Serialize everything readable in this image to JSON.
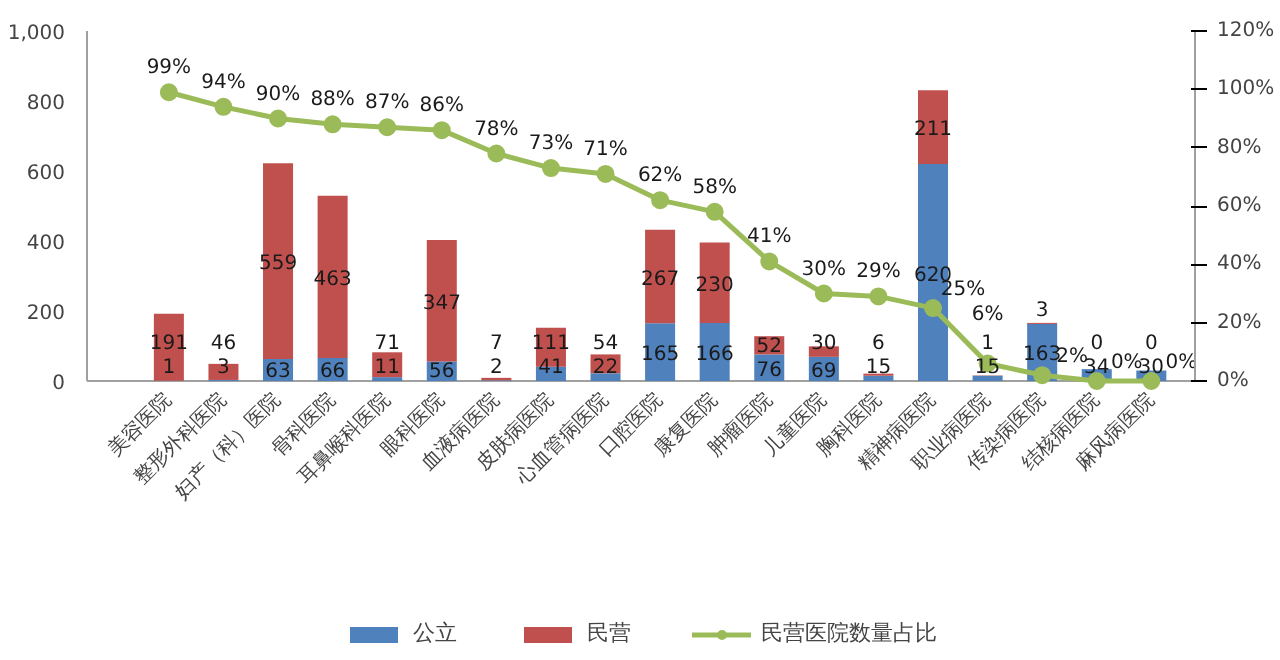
{
  "chart_data": {
    "type": "bar",
    "stacked": true,
    "data_labels": true,
    "legend": "bottom",
    "grid": false,
    "categories": [
      "美容医院",
      "整形外科医院",
      "妇产（科）医院",
      "骨科医院",
      "耳鼻喉科医院",
      "眼科医院",
      "血液病医院",
      "皮肤病医院",
      "心血管病医院",
      "口腔医院",
      "康复医院",
      "肿瘤医院",
      "儿童医院",
      "胸科医院",
      "精神病医院",
      "职业病医院",
      "传染病医院",
      "结核病医院",
      "麻风病医院"
    ],
    "series": [
      {
        "name": "公立",
        "color": "#4f81bd",
        "values": [
          1,
          3,
          63,
          66,
          11,
          56,
          2,
          41,
          22,
          165,
          166,
          76,
          69,
          15,
          620,
          15,
          163,
          34,
          30
        ]
      },
      {
        "name": "民营",
        "color": "#c0504d",
        "values": [
          191,
          46,
          559,
          463,
          71,
          347,
          7,
          111,
          54,
          267,
          230,
          52,
          30,
          6,
          211,
          1,
          3,
          0,
          0
        ]
      },
      {
        "name": "民营医院数量占比",
        "type": "line",
        "axis": "y2",
        "marker": "circle",
        "color": "#9bbb59",
        "values": [
          99,
          94,
          90,
          88,
          87,
          86,
          78,
          73,
          71,
          62,
          58,
          41,
          30,
          29,
          25,
          6,
          2,
          0,
          0
        ],
        "value_labels": [
          "99%",
          "94%",
          "90%",
          "88%",
          "87%",
          "86%",
          "78%",
          "73%",
          "71%",
          "62%",
          "58%",
          "41%",
          "30%",
          "29%",
          "25%",
          "6%",
          "2%",
          "0%",
          "0%"
        ]
      }
    ],
    "ylim": [
      0,
      1000
    ],
    "yticks": [
      0,
      200,
      400,
      600,
      800,
      {
        "value": 1000,
        "label": "1,000"
      }
    ],
    "y2lim": [
      0,
      120
    ],
    "y2ticks": [
      {
        "value": 0,
        "label": "0%"
      },
      {
        "value": 20,
        "label": "20%"
      },
      {
        "value": 40,
        "label": "40%"
      },
      {
        "value": 60,
        "label": "60%"
      },
      {
        "value": 80,
        "label": "80%"
      },
      {
        "value": 100,
        "label": "100%"
      },
      {
        "value": 120,
        "label": "120%"
      }
    ]
  }
}
